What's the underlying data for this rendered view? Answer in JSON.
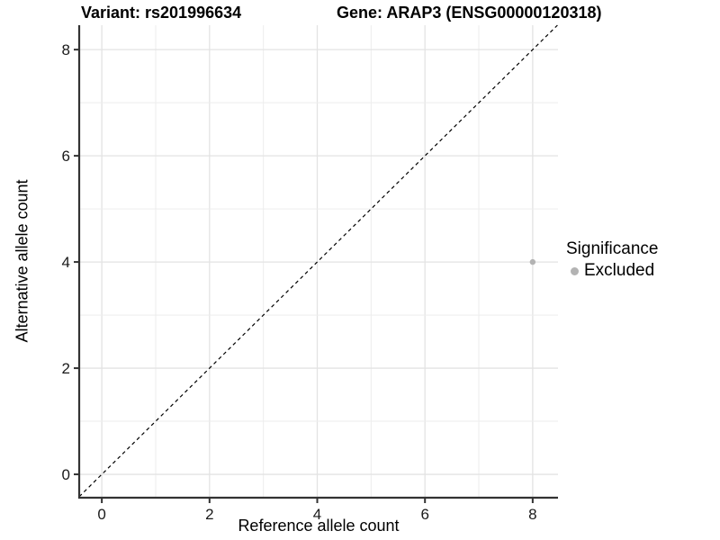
{
  "figure": {
    "title_left": "Variant: rs201996634",
    "title_right": "Gene: ARAP3 (ENSG00000120318)"
  },
  "chart_data": {
    "type": "scatter",
    "title": "Variant: rs201996634 / Gene: ARAP3 (ENSG00000120318)",
    "xlabel": "Reference allele count",
    "ylabel": "Alternative allele count",
    "xlim": [
      -0.42,
      8.47
    ],
    "ylim": [
      -0.44,
      8.46
    ],
    "x_ticks": [
      0,
      2,
      4,
      6,
      8
    ],
    "y_ticks": [
      0,
      2,
      4,
      6,
      8
    ],
    "x_grid": [
      0,
      1,
      2,
      3,
      4,
      5,
      6,
      7,
      8
    ],
    "y_grid": [
      0,
      1,
      2,
      3,
      4,
      5,
      6,
      7,
      8
    ],
    "grid": true,
    "points": [
      {
        "x": 8,
        "y": 4,
        "significance": "Excluded"
      }
    ],
    "identity_line": {
      "slope": 1,
      "intercept": 0,
      "style": "dashed",
      "color": "#000000"
    },
    "legend": {
      "title": "Significance",
      "position": "right",
      "entries": [
        {
          "label": "Excluded",
          "color": "#b3b3b3"
        }
      ]
    },
    "colors": {
      "point": "#b3b3b3",
      "grid_major": "#e3e3e3",
      "grid_minor": "#ededed",
      "axis_line": "#333333",
      "tick": "#333333",
      "text": "#1a1a1a"
    }
  }
}
